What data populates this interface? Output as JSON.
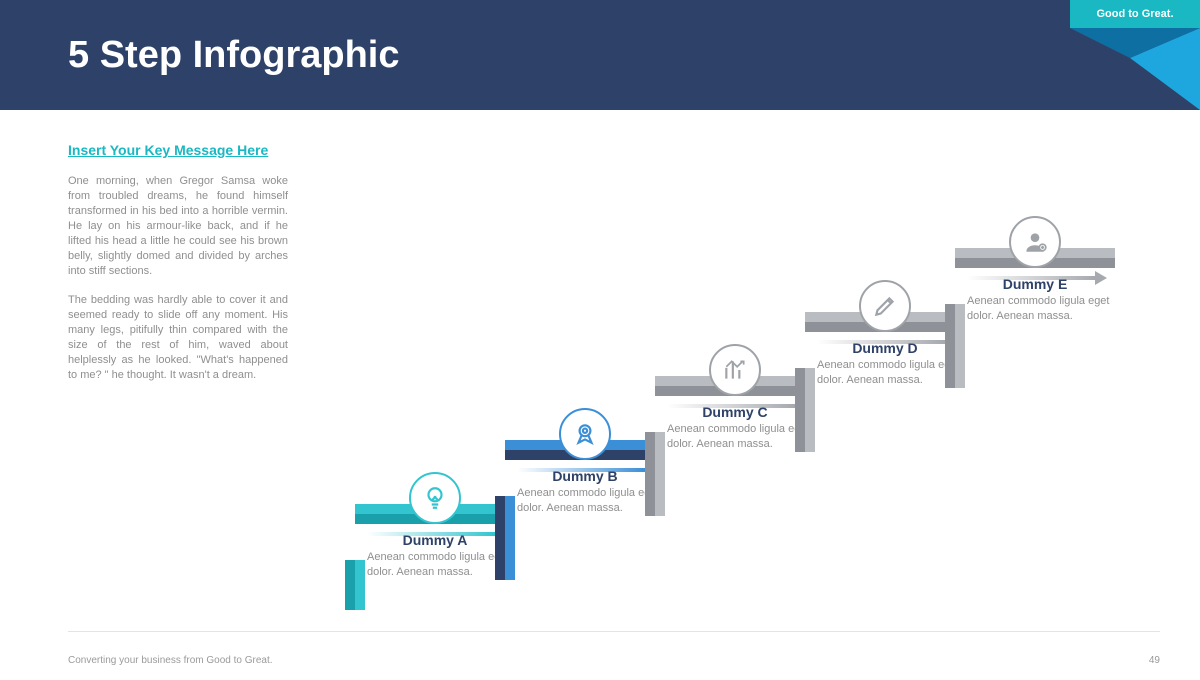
{
  "colors": {
    "header_bg": "#2e4168",
    "ribbon_top": "#19b8c3",
    "ribbon_fold_light": "#1ea6de",
    "ribbon_fold_dark": "#0e6fa3",
    "subtitle": "#19b8c3",
    "body_text": "#8f8f8f",
    "footer_text": "#9a9a9a",
    "footer_divider": "#e3e3e3"
  },
  "header": {
    "title": "5 Step Infographic",
    "ribbon_text": "Good to Great."
  },
  "sidebar": {
    "subtitle": "Insert Your Key Message Here",
    "p1": "One morning, when Gregor Samsa woke from troubled dreams, he found himself transformed in his bed into a horrible vermin. He lay on his armour-like back, and if he lifted his head a little he could see his brown belly, slightly domed and divided by arches into stiff sections.",
    "p2": "The bedding was hardly able to cover it and seemed ready to slide off any moment. His many legs, pitifully thin compared with the size of the rest of him, waved about helplessly as he looked. \"What's happened to me? \" he thought. It wasn't a dream."
  },
  "footer": {
    "left": "Converting your business from Good to Great.",
    "page": "49"
  },
  "stair": {
    "step_width": 160,
    "step_bar_height": 20,
    "rise": 64,
    "icon_diameter": 52,
    "title_color": "#2e4168",
    "desc_color": "#8f8f8f",
    "steps": [
      {
        "label": "Dummy A",
        "desc": "Aenean commodo ligula eget dolor. Aenean massa.",
        "accent_light": "#33c5cf",
        "accent_dark": "#1aa0aa",
        "arrow_color": "#33c5cf",
        "icon": "bulb"
      },
      {
        "label": "Dummy B",
        "desc": "Aenean commodo ligula eget dolor. Aenean massa.",
        "accent_light": "#3b8fd6",
        "accent_dark": "#2e4168",
        "arrow_color": "#3b8fd6",
        "icon": "medal"
      },
      {
        "label": "Dummy C",
        "desc": "Aenean commodo ligula eget dolor. Aenean massa.",
        "accent_light": "#b9bcc0",
        "accent_dark": "#8e9298",
        "arrow_color": "#a6a9ae",
        "icon": "chart"
      },
      {
        "label": "Dummy D",
        "desc": "Aenean commodo ligula eget dolor. Aenean massa.",
        "accent_light": "#b9bcc0",
        "accent_dark": "#8e9298",
        "arrow_color": "#a6a9ae",
        "icon": "pencil"
      },
      {
        "label": "Dummy E",
        "desc": "Aenean commodo ligula eget dolor. Aenean massa.",
        "accent_light": "#b9bcc0",
        "accent_dark": "#8e9298",
        "arrow_color": "#a6a9ae",
        "icon": "user"
      }
    ]
  }
}
